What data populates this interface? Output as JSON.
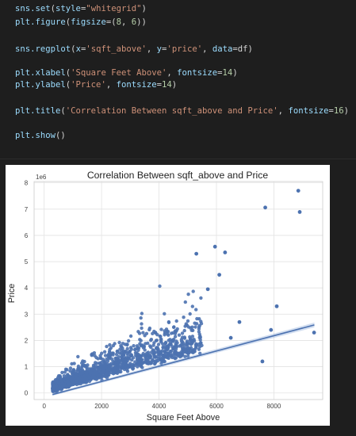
{
  "code_lines": [
    {
      "segs": [
        [
          "fn",
          "sns.set"
        ],
        [
          "pn",
          "("
        ],
        [
          "kw",
          "style"
        ],
        [
          "pn",
          "="
        ],
        [
          "str",
          "\"whitegrid\""
        ],
        [
          "pn",
          ")"
        ]
      ]
    },
    {
      "segs": [
        [
          "fn",
          "plt.figure"
        ],
        [
          "pn",
          "("
        ],
        [
          "kw",
          "figsize"
        ],
        [
          "pn",
          "=("
        ],
        [
          "num",
          "8"
        ],
        [
          "pn",
          ", "
        ],
        [
          "num",
          "6"
        ],
        [
          "pn",
          "))"
        ]
      ]
    },
    {
      "segs": []
    },
    {
      "segs": [
        [
          "fn",
          "sns.regplot"
        ],
        [
          "pn",
          "("
        ],
        [
          "kw",
          "x"
        ],
        [
          "pn",
          "="
        ],
        [
          "str",
          "'sqft_above'"
        ],
        [
          "pn",
          ", "
        ],
        [
          "kw",
          "y"
        ],
        [
          "pn",
          "="
        ],
        [
          "str",
          "'price'"
        ],
        [
          "pn",
          ", "
        ],
        [
          "kw",
          "data"
        ],
        [
          "pn",
          "=df)"
        ]
      ]
    },
    {
      "segs": []
    },
    {
      "segs": [
        [
          "fn",
          "plt.xlabel"
        ],
        [
          "pn",
          "("
        ],
        [
          "str",
          "'Square Feet Above'"
        ],
        [
          "pn",
          ", "
        ],
        [
          "kw",
          "fontsize"
        ],
        [
          "pn",
          "="
        ],
        [
          "num",
          "14"
        ],
        [
          "pn",
          ")"
        ]
      ]
    },
    {
      "segs": [
        [
          "fn",
          "plt.ylabel"
        ],
        [
          "pn",
          "("
        ],
        [
          "str",
          "'Price'"
        ],
        [
          "pn",
          ", "
        ],
        [
          "kw",
          "fontsize"
        ],
        [
          "pn",
          "="
        ],
        [
          "num",
          "14"
        ],
        [
          "pn",
          ")"
        ]
      ]
    },
    {
      "segs": []
    },
    {
      "segs": [
        [
          "fn",
          "plt.title"
        ],
        [
          "pn",
          "("
        ],
        [
          "str",
          "'Correlation Between sqft_above and Price'"
        ],
        [
          "pn",
          ", "
        ],
        [
          "kw",
          "fontsize"
        ],
        [
          "pn",
          "="
        ],
        [
          "num",
          "16"
        ],
        [
          "pn",
          ")"
        ]
      ]
    },
    {
      "segs": []
    },
    {
      "segs": [
        [
          "fn",
          "plt.show"
        ],
        [
          "pn",
          "()"
        ]
      ]
    }
  ],
  "chart_data": {
    "type": "scatter",
    "title": "Correlation Between sqft_above and Price",
    "xlabel": "Square Feet Above",
    "ylabel": "Price",
    "y_multiplier_label": "1e6",
    "xlim": [
      -350,
      9700
    ],
    "ylim": [
      -0.25,
      8.05
    ],
    "x_ticks": [
      0,
      2000,
      4000,
      6000,
      8000
    ],
    "y_ticks": [
      0,
      1,
      2,
      3,
      4,
      5,
      6,
      7,
      8
    ],
    "grid": true,
    "point_color": "#4c72b0",
    "regression": {
      "x": [
        290,
        9410
      ],
      "y": [
        -0.06,
        2.59
      ]
    },
    "outliers": [
      {
        "x": 8850,
        "y": 7.7
      },
      {
        "x": 7700,
        "y": 7.06
      },
      {
        "x": 8900,
        "y": 6.89
      },
      {
        "x": 5950,
        "y": 5.57
      },
      {
        "x": 6300,
        "y": 5.35
      },
      {
        "x": 5300,
        "y": 5.3
      },
      {
        "x": 6100,
        "y": 4.5
      },
      {
        "x": 5700,
        "y": 3.95
      },
      {
        "x": 8100,
        "y": 3.3
      },
      {
        "x": 9400,
        "y": 2.3
      },
      {
        "x": 7900,
        "y": 2.4
      },
      {
        "x": 7600,
        "y": 1.2
      },
      {
        "x": 6800,
        "y": 2.7
      },
      {
        "x": 6500,
        "y": 2.1
      }
    ]
  }
}
